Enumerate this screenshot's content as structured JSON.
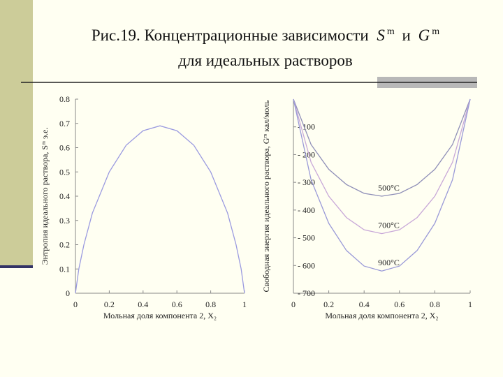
{
  "header": {
    "line1": [
      "Рис.19. Концентрационные зависимости",
      "S",
      "m",
      "и",
      "G",
      "m"
    ],
    "line2": "для идеальных растворов"
  },
  "chart_data": [
    {
      "type": "line",
      "ylabel": "Энтропия идеального раствора, Sᵐ э.е.",
      "xlabel": "Мольная доля компонента 2, X₂",
      "x": [
        0,
        0.02,
        0.05,
        0.1,
        0.2,
        0.3,
        0.4,
        0.5,
        0.6,
        0.7,
        0.8,
        0.9,
        0.95,
        0.98,
        1
      ],
      "series": [
        {
          "color": "#9a9ae0",
          "values": [
            0,
            0.1,
            0.2,
            0.33,
            0.5,
            0.61,
            0.67,
            0.69,
            0.67,
            0.61,
            0.5,
            0.33,
            0.2,
            0.1,
            0
          ]
        }
      ],
      "xlim": [
        0,
        1
      ],
      "xticks": [
        0,
        0.2,
        0.4,
        0.6,
        0.8,
        1
      ],
      "ylim": [
        0,
        0.8
      ],
      "yticks": [
        0,
        0.1,
        0.2,
        0.3,
        0.4,
        0.5,
        0.6,
        0.7,
        0.8
      ]
    },
    {
      "type": "line",
      "ylabel": "Свободная энергия идеального раствора, Gᵐ кал/моль",
      "xlabel": "Мольная доля компонента 2, X₂",
      "x": [
        0,
        0.1,
        0.2,
        0.3,
        0.4,
        0.5,
        0.6,
        0.7,
        0.8,
        0.9,
        1
      ],
      "series": [
        {
          "name": "500°C",
          "color": "#8f8fb8",
          "values": [
            0,
            -164,
            -253,
            -308,
            -340,
            -350,
            -340,
            -308,
            -253,
            -164,
            0
          ]
        },
        {
          "name": "700°C",
          "color": "#c8a8d8",
          "values": [
            0,
            -228,
            -350,
            -427,
            -471,
            -485,
            -471,
            -427,
            -350,
            -228,
            0
          ]
        },
        {
          "name": "900°C",
          "color": "#9a9ad8",
          "values": [
            0,
            -291,
            -448,
            -546,
            -602,
            -620,
            -602,
            -546,
            -448,
            -291,
            0
          ]
        }
      ],
      "xlim": [
        0,
        1
      ],
      "xticks": [
        0,
        0.2,
        0.4,
        0.6,
        0.8,
        1
      ],
      "ylim": [
        -700,
        0
      ],
      "yticks": [
        {
          "value": -100,
          "label": "- 100"
        },
        {
          "value": -200,
          "label": "- 200"
        },
        {
          "value": -300,
          "label": "- 300"
        },
        {
          "value": -400,
          "label": "- 400"
        },
        {
          "value": -500,
          "label": "- 500"
        },
        {
          "value": -600,
          "label": "- 600"
        },
        {
          "value": -700,
          "label": "- 700"
        }
      ]
    }
  ]
}
